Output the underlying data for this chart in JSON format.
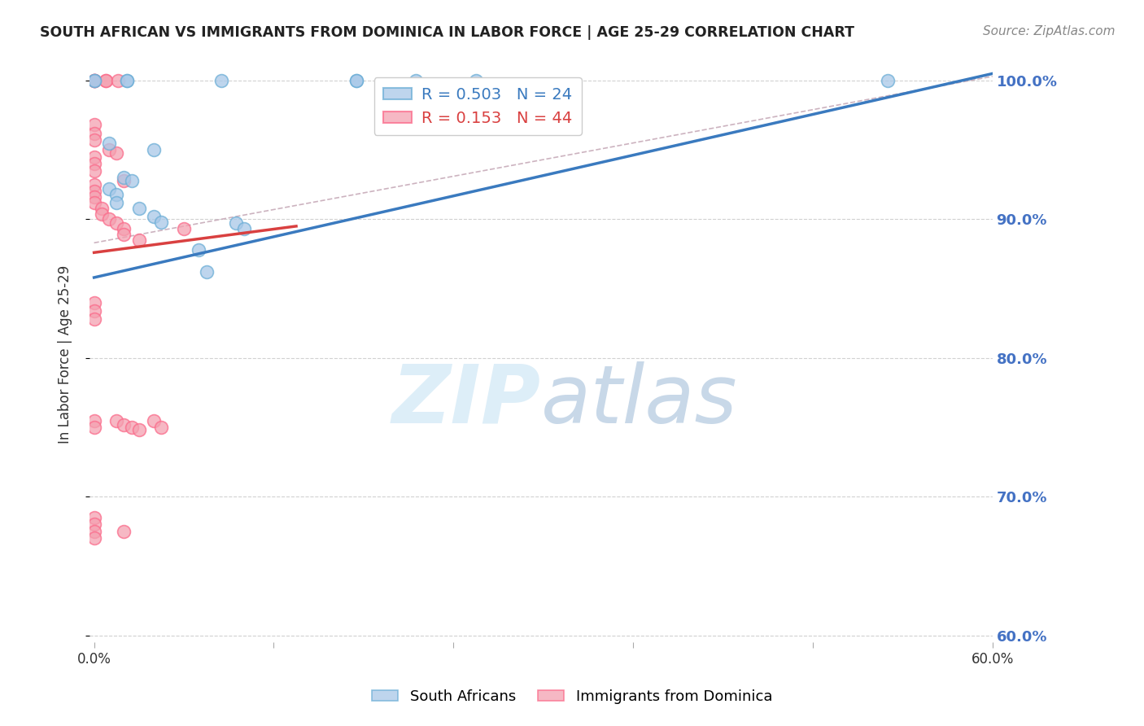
{
  "title": "SOUTH AFRICAN VS IMMIGRANTS FROM DOMINICA IN LABOR FORCE | AGE 25-29 CORRELATION CHART",
  "source": "Source: ZipAtlas.com",
  "ylabel": "In Labor Force | Age 25-29",
  "xlim": [
    -0.003,
    0.6
  ],
  "ylim": [
    0.595,
    1.01
  ],
  "ytick_labels": [
    "60.0%",
    "70.0%",
    "80.0%",
    "90.0%",
    "100.0%"
  ],
  "ytick_values": [
    0.6,
    0.7,
    0.8,
    0.9,
    1.0
  ],
  "xtick_values": [
    0.0,
    0.12,
    0.24,
    0.36,
    0.48,
    0.6
  ],
  "xtick_labels": [
    "0.0%",
    "",
    "",
    "",
    "",
    "60.0%"
  ],
  "legend_blue_r": "0.503",
  "legend_blue_n": "24",
  "legend_pink_r": "0.153",
  "legend_pink_n": "44",
  "blue_color": "#a8c8e8",
  "pink_color": "#f4a0b0",
  "blue_edge_color": "#6baed6",
  "pink_edge_color": "#fb6a8a",
  "blue_line_color": "#3a7abf",
  "pink_line_color": "#d94040",
  "blue_line": [
    [
      0.0,
      0.858
    ],
    [
      0.6,
      1.005
    ]
  ],
  "pink_line": [
    [
      0.0,
      0.876
    ],
    [
      0.135,
      0.895
    ]
  ],
  "ref_line": [
    [
      0.0,
      0.883
    ],
    [
      0.6,
      1.003
    ]
  ],
  "blue_scatter": [
    [
      0.0,
      1.0
    ],
    [
      0.0,
      1.0
    ],
    [
      0.022,
      1.0
    ],
    [
      0.022,
      1.0
    ],
    [
      0.085,
      1.0
    ],
    [
      0.175,
      1.0
    ],
    [
      0.175,
      1.0
    ],
    [
      0.215,
      1.0
    ],
    [
      0.255,
      1.0
    ],
    [
      0.53,
      1.0
    ],
    [
      0.01,
      0.955
    ],
    [
      0.04,
      0.95
    ],
    [
      0.02,
      0.93
    ],
    [
      0.025,
      0.928
    ],
    [
      0.01,
      0.922
    ],
    [
      0.015,
      0.918
    ],
    [
      0.015,
      0.912
    ],
    [
      0.03,
      0.908
    ],
    [
      0.04,
      0.902
    ],
    [
      0.045,
      0.898
    ],
    [
      0.095,
      0.897
    ],
    [
      0.1,
      0.893
    ],
    [
      0.07,
      0.878
    ],
    [
      0.075,
      0.862
    ]
  ],
  "pink_scatter": [
    [
      0.0,
      1.0
    ],
    [
      0.0,
      1.0
    ],
    [
      0.0,
      1.0
    ],
    [
      0.0,
      1.0
    ],
    [
      0.008,
      1.0
    ],
    [
      0.008,
      1.0
    ],
    [
      0.016,
      1.0
    ],
    [
      0.0,
      0.968
    ],
    [
      0.0,
      0.962
    ],
    [
      0.0,
      0.957
    ],
    [
      0.01,
      0.95
    ],
    [
      0.015,
      0.948
    ],
    [
      0.0,
      0.945
    ],
    [
      0.0,
      0.94
    ],
    [
      0.0,
      0.935
    ],
    [
      0.02,
      0.928
    ],
    [
      0.0,
      0.925
    ],
    [
      0.0,
      0.92
    ],
    [
      0.0,
      0.916
    ],
    [
      0.0,
      0.912
    ],
    [
      0.005,
      0.908
    ],
    [
      0.005,
      0.904
    ],
    [
      0.01,
      0.9
    ],
    [
      0.015,
      0.897
    ],
    [
      0.02,
      0.893
    ],
    [
      0.02,
      0.889
    ],
    [
      0.03,
      0.885
    ],
    [
      0.06,
      0.893
    ],
    [
      0.0,
      0.84
    ],
    [
      0.0,
      0.834
    ],
    [
      0.0,
      0.828
    ],
    [
      0.04,
      0.755
    ],
    [
      0.045,
      0.75
    ],
    [
      0.0,
      0.755
    ],
    [
      0.0,
      0.75
    ],
    [
      0.0,
      0.685
    ],
    [
      0.0,
      0.68
    ],
    [
      0.0,
      0.675
    ],
    [
      0.0,
      0.67
    ],
    [
      0.015,
      0.755
    ],
    [
      0.02,
      0.752
    ],
    [
      0.025,
      0.75
    ],
    [
      0.03,
      0.748
    ],
    [
      0.02,
      0.675
    ]
  ],
  "watermark_zip": "ZIP",
  "watermark_atlas": "atlas",
  "watermark_color": "#ddeef8",
  "grid_color": "#cccccc",
  "bg_color": "#ffffff",
  "title_color": "#222222",
  "source_color": "#888888",
  "ylabel_color": "#333333",
  "tick_color": "#333333",
  "right_tick_color": "#4472c4"
}
